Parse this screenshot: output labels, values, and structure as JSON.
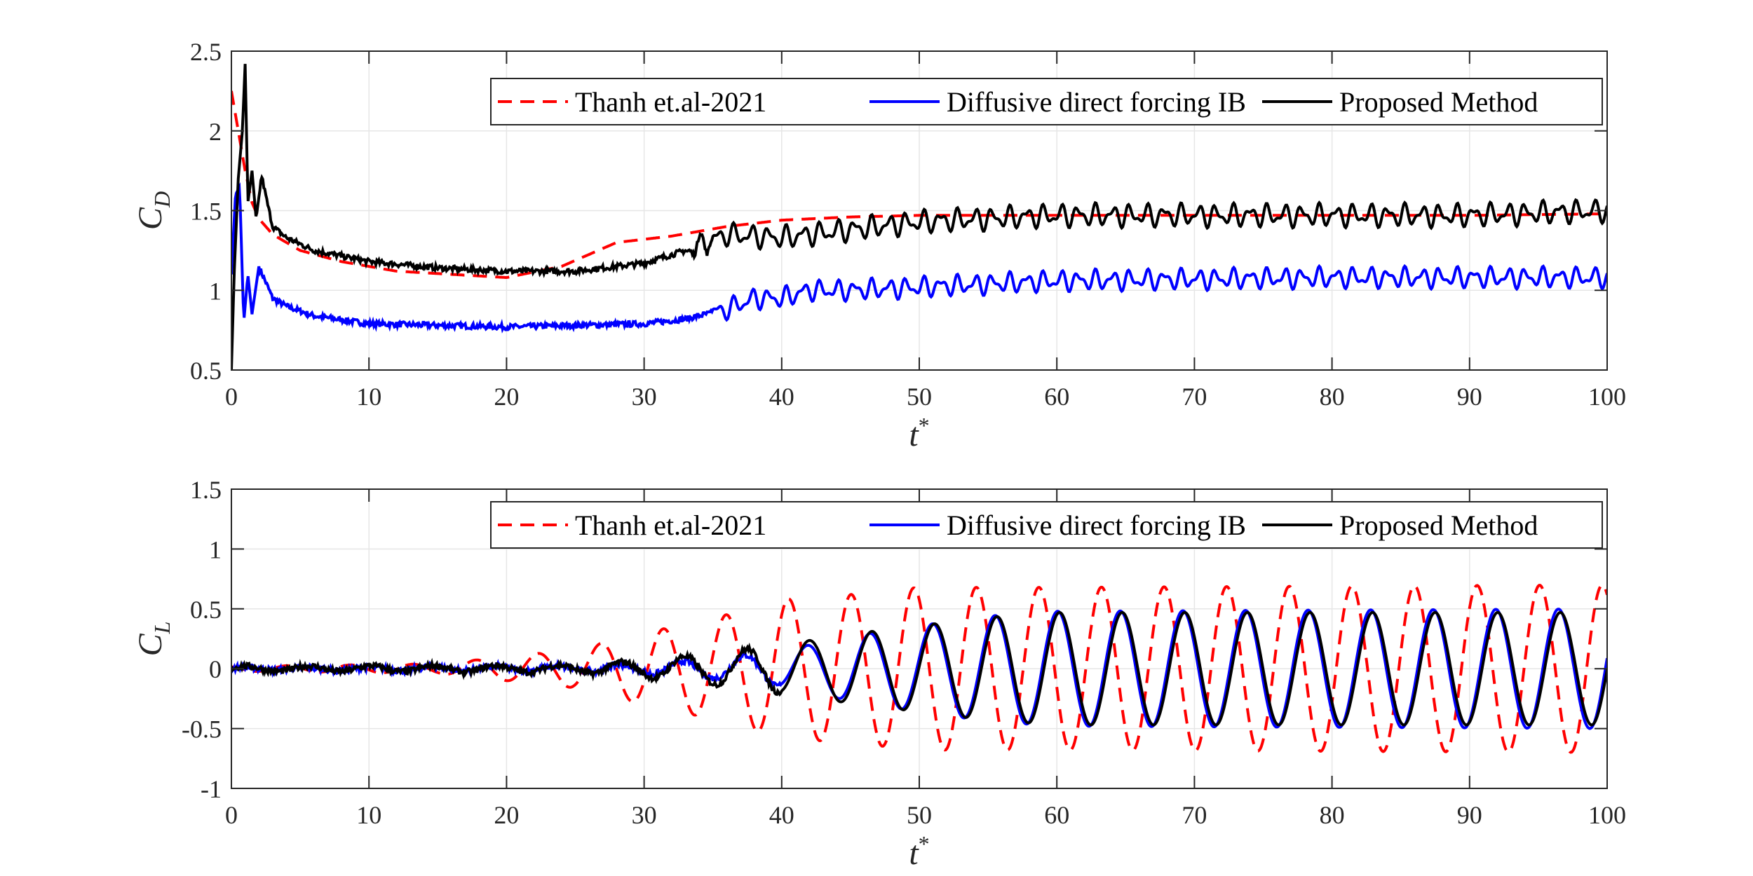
{
  "chart_data": [
    {
      "type": "line",
      "ylabel": "C",
      "ylabel_sub": "D",
      "xlabel": "t",
      "xlabel_sup": "*",
      "xlim": [
        0,
        100
      ],
      "ylim": [
        0.5,
        2.5
      ],
      "xticks": [
        0,
        10,
        20,
        30,
        40,
        50,
        60,
        70,
        80,
        90,
        100
      ],
      "yticks": [
        "0.5",
        "1",
        "1.5",
        "2",
        "2.5"
      ],
      "grid": true,
      "legend_position": "top-right",
      "series": [
        {
          "name": "Thanh et.al-2021",
          "style": "dashed",
          "color": "#ff0000",
          "x": [
            0,
            0.5,
            1,
            1.5,
            2,
            3,
            5,
            8,
            12,
            16,
            20,
            24,
            28,
            32,
            36,
            40,
            45,
            50,
            55,
            60,
            70,
            80,
            90,
            100
          ],
          "y": [
            2.25,
            2.0,
            1.75,
            1.55,
            1.45,
            1.35,
            1.25,
            1.18,
            1.12,
            1.1,
            1.08,
            1.15,
            1.3,
            1.34,
            1.4,
            1.44,
            1.46,
            1.47,
            1.47,
            1.47,
            1.47,
            1.47,
            1.47,
            1.48
          ]
        },
        {
          "name": "Diffusive direct forcing IB",
          "style": "solid",
          "color": "#0000ff",
          "x": [
            0,
            0.3,
            0.6,
            0.9,
            1.2,
            1.5,
            2,
            3,
            4,
            6,
            10,
            15,
            20,
            25,
            30,
            33,
            36,
            38,
            40,
            42,
            45,
            50,
            55,
            60,
            70,
            80,
            90,
            100
          ],
          "y": [
            1.1,
            1.6,
            1.65,
            0.8,
            1.1,
            0.85,
            1.15,
            0.95,
            0.9,
            0.84,
            0.79,
            0.78,
            0.77,
            0.78,
            0.79,
            0.82,
            0.88,
            0.95,
            0.95,
            1.0,
            1.0,
            1.02,
            1.04,
            1.06,
            1.07,
            1.08,
            1.08,
            1.08
          ],
          "osc": [
            [
              35,
              100,
              0.045,
              1.25
            ]
          ]
        },
        {
          "name": "Proposed Method",
          "style": "solid",
          "color": "#000000",
          "x": [
            0,
            0.2,
            0.5,
            0.8,
            1.0,
            1.2,
            1.5,
            1.8,
            2.2,
            2.6,
            3,
            4,
            6,
            10,
            15,
            20,
            25,
            30,
            33,
            36,
            40,
            45,
            50,
            55,
            60,
            70,
            80,
            90,
            100
          ],
          "y": [
            0.5,
            1.1,
            1.7,
            2.0,
            2.42,
            1.55,
            1.75,
            1.45,
            1.72,
            1.55,
            1.4,
            1.33,
            1.25,
            1.18,
            1.14,
            1.12,
            1.12,
            1.17,
            1.25,
            1.35,
            1.33,
            1.38,
            1.43,
            1.45,
            1.47,
            1.47,
            1.47,
            1.47,
            1.5
          ],
          "osc": [
            [
              33,
              100,
              0.05,
              1.25
            ]
          ]
        }
      ]
    },
    {
      "type": "line",
      "ylabel": "C",
      "ylabel_sub": "L",
      "xlabel": "t",
      "xlabel_sup": "*",
      "xlim": [
        0,
        100
      ],
      "ylim": [
        -1,
        1.5
      ],
      "xticks": [
        0,
        10,
        20,
        30,
        40,
        50,
        60,
        70,
        80,
        90,
        100
      ],
      "yticks": [
        "-1",
        "-0.5",
        "0",
        "0.5",
        "1",
        "1.5"
      ],
      "grid": true,
      "legend_position": "top-right",
      "series": [
        {
          "name": "Thanh et.al-2021",
          "style": "dashed",
          "color": "#ff0000",
          "period": 4.55,
          "phase": 0.35,
          "amp_x": [
            0,
            15,
            20,
            25,
            30,
            35,
            40,
            45,
            50,
            55,
            60,
            100
          ],
          "amp_y": [
            0.02,
            0.04,
            0.1,
            0.16,
            0.3,
            0.42,
            0.58,
            0.62,
            0.68,
            0.68,
            0.68,
            0.7
          ]
        },
        {
          "name": "Diffusive direct forcing IB",
          "style": "solid",
          "color": "#0000ff",
          "period": 4.55,
          "phase": 0.05,
          "amp_x": [
            0,
            25,
            30,
            35,
            40,
            45,
            50,
            55,
            60,
            100
          ],
          "amp_y": [
            0.01,
            0.02,
            0.04,
            0.08,
            0.15,
            0.27,
            0.36,
            0.44,
            0.48,
            0.5
          ]
        },
        {
          "name": "Proposed Method",
          "style": "solid",
          "color": "#000000",
          "period": 4.55,
          "phase": 0.02,
          "amp_x": [
            0,
            25,
            30,
            35,
            40,
            45,
            50,
            55,
            60,
            100
          ],
          "amp_y": [
            0.02,
            0.03,
            0.07,
            0.13,
            0.2,
            0.29,
            0.36,
            0.43,
            0.47,
            0.47
          ]
        }
      ]
    }
  ]
}
